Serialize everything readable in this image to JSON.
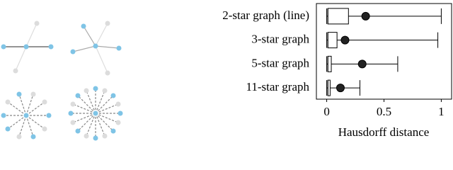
{
  "chart_data": {
    "type": "box",
    "categories": [
      "2-star graph (line)",
      "3-star graph",
      "5-star graph",
      "11-star graph"
    ],
    "boxes": [
      {
        "min": 0,
        "q1": 0.01,
        "median": 0.01,
        "q3": 0.19,
        "max": 1.0,
        "mean": 0.34
      },
      {
        "min": 0,
        "q1": 0.01,
        "median": 0.01,
        "q3": 0.09,
        "max": 0.97,
        "mean": 0.16
      },
      {
        "min": 0,
        "q1": 0.01,
        "median": 0.01,
        "q3": 0.04,
        "max": 0.62,
        "mean": 0.31
      },
      {
        "min": 0,
        "q1": 0.01,
        "median": 0.01,
        "q3": 0.03,
        "max": 0.29,
        "mean": 0.12
      }
    ],
    "xlabel": "Hausdorff distance",
    "xlim": [
      -0.09,
      1.09
    ],
    "xticks": [
      0,
      0.5,
      1
    ],
    "color": "#000000",
    "mean_color": "#222222"
  }
}
